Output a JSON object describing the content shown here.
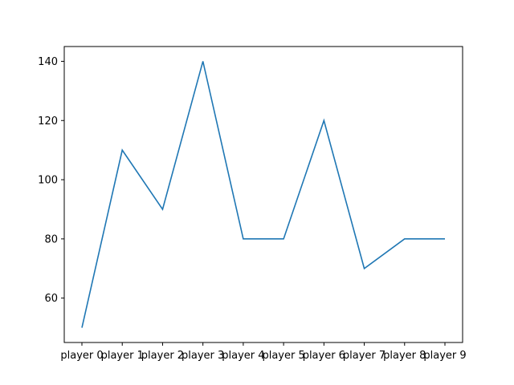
{
  "chart_data": {
    "type": "line",
    "categories": [
      "player 0",
      "player 1",
      "player 2",
      "player 3",
      "player 4",
      "player 5",
      "player 6",
      "player 7",
      "player 8",
      "player 9"
    ],
    "series": [
      {
        "values": [
          50,
          110,
          90,
          140,
          80,
          80,
          120,
          70,
          80,
          80
        ],
        "color": "#1f77b4"
      }
    ],
    "y_ticks": [
      60,
      80,
      100,
      120,
      140
    ],
    "ylim": [
      45,
      145
    ],
    "title": "",
    "xlabel": "",
    "ylabel": "",
    "grid": false,
    "legend": "none"
  }
}
